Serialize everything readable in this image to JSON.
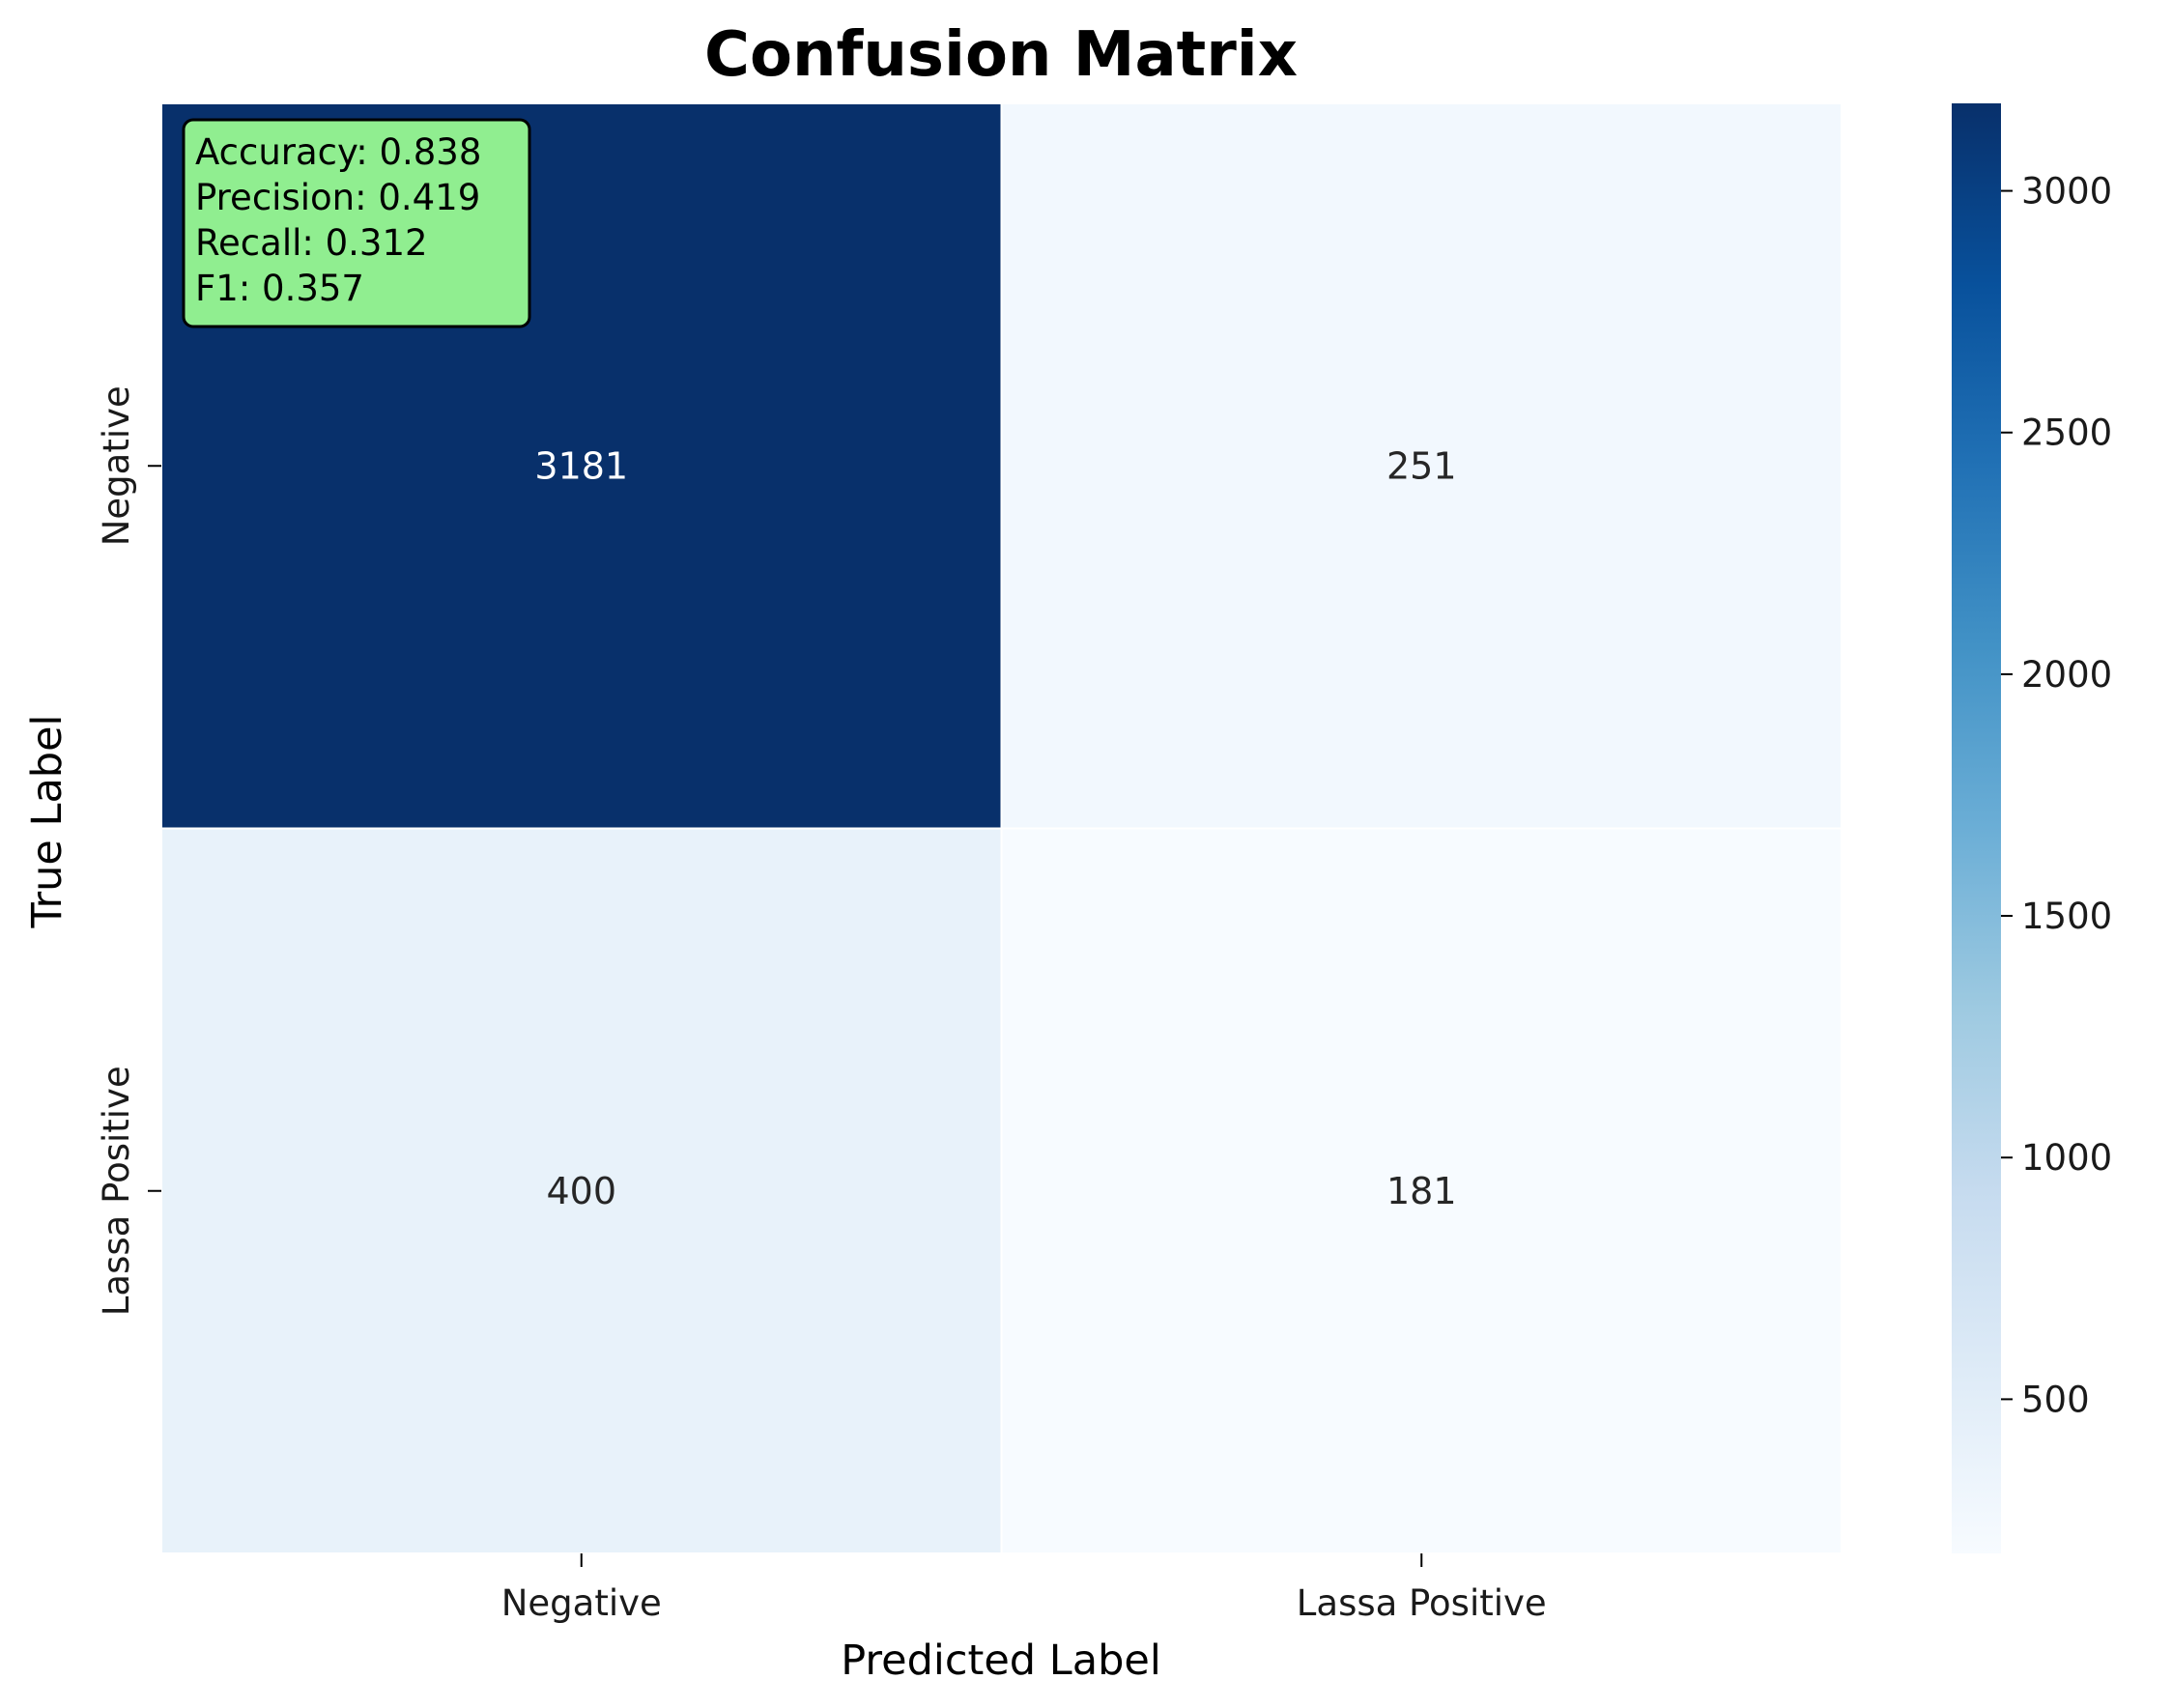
{
  "chart_data": {
    "type": "heatmap",
    "title": "Confusion Matrix",
    "xlabel": "Predicted Label",
    "ylabel": "True Label",
    "x_categories": [
      "Negative",
      "Lassa Positive"
    ],
    "y_categories": [
      "Negative",
      "Lassa Positive"
    ],
    "values": [
      [
        3181,
        251
      ],
      [
        400,
        181
      ]
    ],
    "colormap": "Blues",
    "vmin": 181,
    "vmax": 3181,
    "colorbar_ticks": [
      500,
      1000,
      1500,
      2000,
      2500,
      3000
    ],
    "colorbar_tick_labels": [
      "500",
      "1000",
      "1500",
      "2000",
      "2500",
      "3000"
    ],
    "metrics_box": {
      "lines": [
        "Accuracy: 0.838",
        "Precision: 0.419",
        "Recall: 0.312",
        "F1: 0.357"
      ],
      "background": "#90ee90",
      "border": "#000000",
      "placement": "top-left"
    }
  }
}
